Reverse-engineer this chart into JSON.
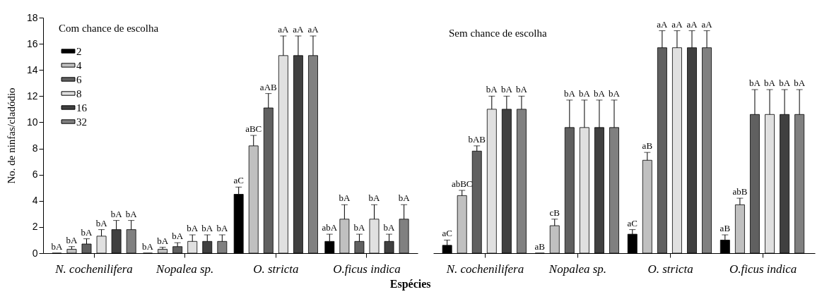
{
  "chart_data": [
    {
      "type": "bar",
      "title": "Com chance de escolha",
      "ylabel": "No. de ninfas/cladódio",
      "xlabel": "Espécies",
      "categories": [
        "N. cochenilifera",
        "Nopalea sp.",
        "O. stricta",
        "O.ficus indica"
      ],
      "ylim": [
        0,
        18
      ],
      "yticks": [
        0,
        2,
        4,
        6,
        8,
        10,
        12,
        14,
        16,
        18
      ],
      "grid": false,
      "legend": "top left",
      "series": [
        {
          "name": "2",
          "color": "#000000",
          "values": [
            0,
            0,
            4.5,
            0.9
          ],
          "errors": [
            null,
            null,
            0.55,
            0.55
          ],
          "value_labels": [
            "bA",
            "bA",
            "aC",
            "abA"
          ]
        },
        {
          "name": "4",
          "color": "#c0c0c0",
          "values": [
            0.3,
            0.3,
            8.2,
            2.6
          ],
          "errors": [
            0.2,
            0.15,
            0.8,
            1.1
          ],
          "value_labels": [
            "bA",
            "bA",
            "aBC",
            "bA"
          ]
        },
        {
          "name": "6",
          "color": "#606060",
          "values": [
            0.7,
            0.5,
            11.1,
            0.9
          ],
          "errors": [
            0.4,
            0.3,
            1.1,
            0.55
          ],
          "value_labels": [
            "bA",
            "bA",
            "aAB",
            "bA"
          ]
        },
        {
          "name": "8",
          "color": "#e0e0e0",
          "values": [
            1.3,
            0.9,
            15.1,
            2.6
          ],
          "errors": [
            0.5,
            0.5,
            1.5,
            1.1
          ],
          "value_labels": [
            "bA",
            "bA",
            "aA",
            "bA"
          ]
        },
        {
          "name": "16",
          "color": "#404040",
          "values": [
            1.8,
            0.9,
            15.1,
            0.9
          ],
          "errors": [
            0.7,
            0.5,
            1.5,
            0.55
          ],
          "value_labels": [
            "bA",
            "bA",
            "aA",
            "bA"
          ]
        },
        {
          "name": "32",
          "color": "#808080",
          "values": [
            1.8,
            0.9,
            15.1,
            2.6
          ],
          "errors": [
            0.7,
            0.5,
            1.5,
            1.1
          ],
          "value_labels": [
            "bA",
            "bA",
            "aA",
            "bA"
          ]
        }
      ]
    },
    {
      "type": "bar",
      "title": "Sem chance de escolha",
      "categories": [
        "N. cochenilifera",
        "Nopalea sp.",
        "O. stricta",
        "O.ficus indica"
      ],
      "ylim": [
        0,
        18
      ],
      "tick_labels": "x",
      "grid": false,
      "series": [
        {
          "color": "#000000",
          "values": [
            0.6,
            0,
            1.45,
            1.0
          ],
          "errors": [
            0.4,
            null,
            0.35,
            0.4
          ],
          "value_labels": [
            "aC",
            "aB",
            "aC",
            "aB"
          ]
        },
        {
          "color": "#c0c0c0",
          "values": [
            4.4,
            2.1,
            7.1,
            3.7
          ],
          "errors": [
            0.4,
            0.5,
            0.6,
            0.5
          ],
          "value_labels": [
            "abBC",
            "cB",
            "aB",
            "abB"
          ]
        },
        {
          "color": "#606060",
          "values": [
            7.8,
            9.6,
            15.7,
            10.6
          ],
          "errors": [
            0.4,
            2.1,
            1.3,
            1.9
          ],
          "value_labels": [
            "bAB",
            "bA",
            "aA",
            "bA"
          ]
        },
        {
          "color": "#e0e0e0",
          "values": [
            11.0,
            9.6,
            15.7,
            10.6
          ],
          "errors": [
            1.0,
            2.1,
            1.3,
            1.9
          ],
          "value_labels": [
            "bA",
            "bA",
            "aA",
            "bA"
          ]
        },
        {
          "color": "#404040",
          "values": [
            11.0,
            9.6,
            15.7,
            10.6
          ],
          "errors": [
            1.0,
            2.1,
            1.3,
            1.9
          ],
          "value_labels": [
            "bA",
            "bA",
            "aA",
            "bA"
          ]
        },
        {
          "color": "#808080",
          "values": [
            11.0,
            9.6,
            15.7,
            10.6
          ],
          "errors": [
            1.0,
            2.1,
            1.3,
            1.9
          ],
          "value_labels": [
            "bA",
            "bA",
            "aA",
            "bA"
          ]
        }
      ]
    }
  ]
}
